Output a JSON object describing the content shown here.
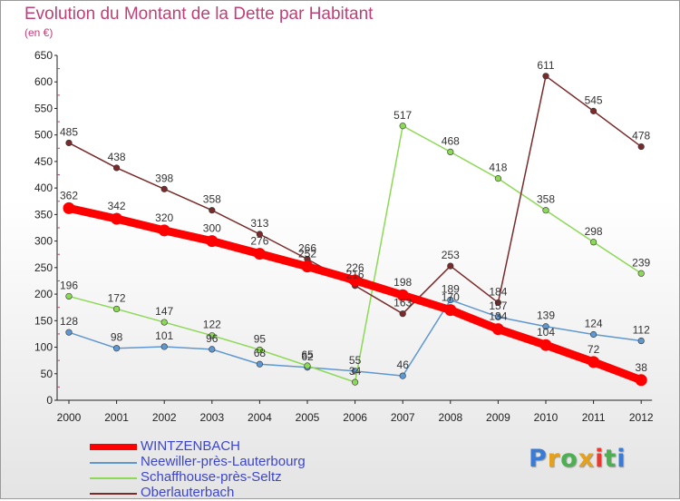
{
  "header": {
    "title": "Evolution du Montant de la Dette par Habitant",
    "unit": "(en €)"
  },
  "brand": {
    "text": "Proxiti",
    "colors": [
      "#3a7bd5",
      "#e6a11c",
      "#4caf50",
      "#e6a11c",
      "#e63b2e",
      "#4caf50",
      "#3a7bd5"
    ]
  },
  "chart_data": {
    "type": "line",
    "title": "Evolution du Montant de la Dette par Habitant",
    "subtitle": "(en €)",
    "xlabel": "",
    "ylabel": "",
    "x": [
      "2000",
      "2001",
      "2002",
      "2003",
      "2004",
      "2005",
      "2006",
      "2007",
      "2008",
      "2009",
      "2010",
      "2011",
      "2012"
    ],
    "ylim": [
      0,
      650
    ],
    "yticks": [
      0,
      50,
      100,
      150,
      200,
      250,
      300,
      350,
      400,
      450,
      500,
      550,
      600,
      650
    ],
    "grid": false,
    "legend_position": "bottom-left",
    "series": [
      {
        "name": "WINTZENBACH",
        "color": "#ff0000",
        "emphasis": true,
        "values": [
          362,
          342,
          320,
          300,
          276,
          252,
          226,
          198,
          170,
          134,
          104,
          72,
          38
        ]
      },
      {
        "name": "Neewiller-près-Lauterbourg",
        "color": "#5f97d0",
        "emphasis": false,
        "values": [
          128,
          98,
          101,
          96,
          68,
          62,
          55,
          46,
          189,
          157,
          139,
          124,
          112
        ]
      },
      {
        "name": "Schaffhouse-près-Seltz",
        "color": "#8cd955",
        "emphasis": false,
        "values": [
          196,
          172,
          147,
          122,
          95,
          65,
          34,
          517,
          468,
          418,
          358,
          298,
          239
        ]
      },
      {
        "name": "Oberlauterbach",
        "color": "#7a2a2a",
        "emphasis": false,
        "values": [
          485,
          438,
          398,
          358,
          313,
          266,
          216,
          163,
          253,
          184,
          611,
          545,
          478
        ]
      }
    ]
  }
}
